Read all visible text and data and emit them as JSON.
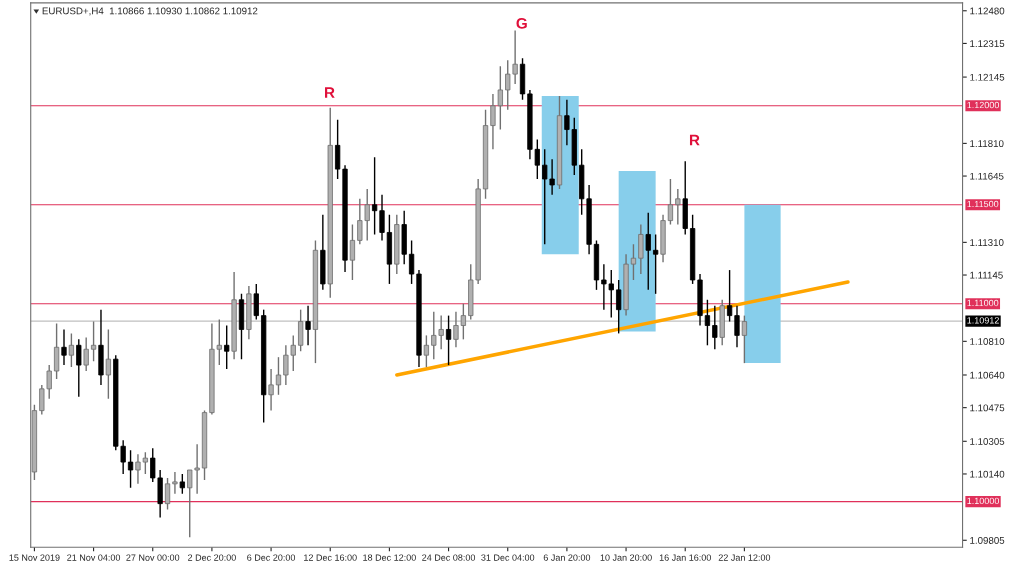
{
  "chart_data": {
    "type": "candlestick",
    "title": "EURUSD+,H4  1.10866 1.10930 1.10862 1.10912",
    "categories": [
      "15 Nov 2019",
      null,
      null,
      null,
      null,
      null,
      null,
      null,
      "21 Nov 04:00",
      null,
      null,
      null,
      null,
      null,
      null,
      null,
      "27 Nov 00:00",
      null,
      null,
      null,
      null,
      null,
      null,
      null,
      "2 Dec 20:00",
      null,
      null,
      null,
      null,
      null,
      null,
      null,
      "6 Dec 20:00",
      null,
      null,
      null,
      null,
      null,
      null,
      null,
      "12 Dec 16:00",
      null,
      null,
      null,
      null,
      null,
      null,
      null,
      "18 Dec 12:00",
      null,
      null,
      null,
      null,
      null,
      null,
      null,
      "24 Dec 08:00",
      null,
      null,
      null,
      null,
      null,
      null,
      null,
      "31 Dec 04:00",
      null,
      null,
      null,
      null,
      null,
      null,
      null,
      "6 Jan 20:00",
      null,
      null,
      null,
      null,
      null,
      null,
      null,
      "10 Jan 20:00",
      null,
      null,
      null,
      null,
      null,
      null,
      null,
      "16 Jan 16:00",
      null,
      null,
      null,
      null,
      null,
      null,
      null,
      "22 Jan 12:00",
      null,
      null,
      null,
      null,
      null,
      null,
      null,
      null,
      null,
      null,
      null,
      null,
      null,
      null,
      null,
      null,
      null,
      null,
      null,
      null,
      null,
      null,
      null,
      null,
      null,
      null,
      null,
      null,
      null
    ],
    "ohlc": [
      [
        1.1015,
        1.1049,
        1.1011,
        1.1046
      ],
      [
        1.1046,
        1.1059,
        1.1044,
        1.1057
      ],
      [
        1.1057,
        1.1069,
        1.1052,
        1.1066
      ],
      [
        1.1066,
        1.109,
        1.1062,
        1.1078
      ],
      [
        1.1078,
        1.1087,
        1.1069,
        1.1074
      ],
      [
        1.1074,
        1.1085,
        1.1068,
        1.1079
      ],
      [
        1.1079,
        1.1082,
        1.1053,
        1.1069
      ],
      [
        1.1069,
        1.1083,
        1.1066,
        1.1077
      ],
      [
        1.1077,
        1.1091,
        1.1071,
        1.1079
      ],
      [
        1.1079,
        1.1097,
        1.1059,
        1.1064
      ],
      [
        1.1064,
        1.1087,
        1.1052,
        1.1072
      ],
      [
        1.1072,
        1.1074,
        1.1026,
        1.1028
      ],
      [
        1.1028,
        1.1031,
        1.1014,
        1.102
      ],
      [
        1.102,
        1.1026,
        1.1007,
        1.1016
      ],
      [
        1.1016,
        1.1024,
        1.1009,
        1.102
      ],
      [
        1.102,
        1.1025,
        1.1014,
        1.1022
      ],
      [
        1.1022,
        1.1027,
        1.101,
        1.1012
      ],
      [
        1.1012,
        1.1016,
        1.0992,
        1.0999
      ],
      [
        1.0999,
        1.1012,
        1.0996,
        1.1009
      ],
      [
        1.1009,
        1.1015,
        1.1004,
        1.101
      ],
      [
        1.101,
        1.1014,
        1.1004,
        1.1007
      ],
      [
        1.1007,
        1.1016,
        1.0982,
        1.1016
      ],
      [
        1.1016,
        1.1029,
        1.1004,
        1.1017
      ],
      [
        1.1017,
        1.1046,
        1.1011,
        1.1045
      ],
      [
        1.1045,
        1.109,
        1.1044,
        1.1077
      ],
      [
        1.1077,
        1.1092,
        1.1069,
        1.1079
      ],
      [
        1.1079,
        1.1089,
        1.1067,
        1.1076
      ],
      [
        1.1076,
        1.1116,
        1.1072,
        1.1102
      ],
      [
        1.1102,
        1.1105,
        1.1072,
        1.1087
      ],
      [
        1.1087,
        1.1109,
        1.1082,
        1.1105
      ],
      [
        1.1105,
        1.111,
        1.1092,
        1.1094
      ],
      [
        1.1094,
        1.1097,
        1.104,
        1.1054
      ],
      [
        1.1054,
        1.1067,
        1.1046,
        1.1059
      ],
      [
        1.1059,
        1.1073,
        1.1054,
        1.1064
      ],
      [
        1.1064,
        1.1079,
        1.1059,
        1.1074
      ],
      [
        1.1074,
        1.1084,
        1.1066,
        1.1079
      ],
      [
        1.1079,
        1.1097,
        1.1076,
        1.1091
      ],
      [
        1.1091,
        1.1099,
        1.1079,
        1.1087
      ],
      [
        1.1087,
        1.1132,
        1.107,
        1.1127
      ],
      [
        1.1127,
        1.1145,
        1.1107,
        1.111
      ],
      [
        1.111,
        1.1199,
        1.1103,
        1.118
      ],
      [
        1.118,
        1.1193,
        1.1163,
        1.1168
      ],
      [
        1.1168,
        1.117,
        1.1116,
        1.1122
      ],
      [
        1.1122,
        1.114,
        1.1112,
        1.1132
      ],
      [
        1.1132,
        1.1153,
        1.113,
        1.1142
      ],
      [
        1.1142,
        1.1158,
        1.1132,
        1.115
      ],
      [
        1.115,
        1.1174,
        1.1135,
        1.1147
      ],
      [
        1.1147,
        1.1155,
        1.1132,
        1.1136
      ],
      [
        1.1136,
        1.1145,
        1.111,
        1.112
      ],
      [
        1.112,
        1.1145,
        1.1115,
        1.114
      ],
      [
        1.114,
        1.1147,
        1.112,
        1.1125
      ],
      [
        1.1125,
        1.1132,
        1.111,
        1.1115
      ],
      [
        1.1115,
        1.1117,
        1.1068,
        1.1074
      ],
      [
        1.1074,
        1.1084,
        1.1068,
        1.1079
      ],
      [
        1.1079,
        1.1096,
        1.1072,
        1.1084
      ],
      [
        1.1084,
        1.1094,
        1.1077,
        1.1087
      ],
      [
        1.1087,
        1.1094,
        1.1069,
        1.1082
      ],
      [
        1.1082,
        1.1096,
        1.1078,
        1.1089
      ],
      [
        1.1089,
        1.11,
        1.1082,
        1.1094
      ],
      [
        1.1094,
        1.112,
        1.1092,
        1.1112
      ],
      [
        1.1112,
        1.1163,
        1.111,
        1.1158
      ],
      [
        1.1158,
        1.1198,
        1.1153,
        1.119
      ],
      [
        1.119,
        1.1206,
        1.1178,
        1.12
      ],
      [
        1.12,
        1.122,
        1.1188,
        1.1208
      ],
      [
        1.1208,
        1.1223,
        1.1198,
        1.1216
      ],
      [
        1.1216,
        1.1238,
        1.1211,
        1.1221
      ],
      [
        1.1221,
        1.1224,
        1.1203,
        1.1206
      ],
      [
        1.1206,
        1.1208,
        1.1173,
        1.1178
      ],
      [
        1.1178,
        1.1183,
        1.1163,
        1.117
      ],
      [
        1.117,
        1.1178,
        1.113,
        1.1163
      ],
      [
        1.1163,
        1.1173,
        1.1155,
        1.116
      ],
      [
        1.116,
        1.1205,
        1.1158,
        1.1195
      ],
      [
        1.1195,
        1.1203,
        1.118,
        1.1188
      ],
      [
        1.1188,
        1.1194,
        1.1165,
        1.117
      ],
      [
        1.117,
        1.1178,
        1.1145,
        1.1153
      ],
      [
        1.1153,
        1.116,
        1.1125,
        1.113
      ],
      [
        1.113,
        1.1132,
        1.1107,
        1.1112
      ],
      [
        1.1112,
        1.112,
        1.1097,
        1.111
      ],
      [
        1.111,
        1.1117,
        1.1093,
        1.1107
      ],
      [
        1.1107,
        1.1112,
        1.1085,
        1.1097
      ],
      [
        1.1097,
        1.1125,
        1.1094,
        1.112
      ],
      [
        1.112,
        1.113,
        1.1112,
        1.1123
      ],
      [
        1.1123,
        1.114,
        1.1115,
        1.1135
      ],
      [
        1.1135,
        1.1146,
        1.1107,
        1.1127
      ],
      [
        1.1127,
        1.1135,
        1.1105,
        1.1125
      ],
      [
        1.1125,
        1.1145,
        1.1121,
        1.1142
      ],
      [
        1.1142,
        1.1163,
        1.114,
        1.115
      ],
      [
        1.115,
        1.1158,
        1.114,
        1.1153
      ],
      [
        1.1153,
        1.1172,
        1.1135,
        1.1138
      ],
      [
        1.1138,
        1.1145,
        1.111,
        1.1112
      ],
      [
        1.1112,
        1.1115,
        1.1089,
        1.1094
      ],
      [
        1.1094,
        1.1102,
        1.1079,
        1.1089
      ],
      [
        1.1089,
        1.1099,
        1.1077,
        1.1083
      ],
      [
        1.1083,
        1.1102,
        1.1079,
        1.1099
      ],
      [
        1.1099,
        1.1117,
        1.1091,
        1.1094
      ],
      [
        1.1094,
        1.1099,
        1.1078,
        1.1084
      ],
      [
        1.1084,
        1.1094,
        1.107,
        1.1091
      ],
      null,
      null,
      null,
      null,
      null,
      null,
      null,
      null,
      null,
      null,
      null,
      null,
      null,
      null,
      null,
      null,
      null,
      null,
      null,
      null,
      null,
      null,
      null,
      null,
      null,
      null,
      null,
      null,
      null
    ],
    "series": [
      {
        "type": "line",
        "values": [
          null,
          null,
          null,
          null,
          null,
          null,
          null,
          null,
          null,
          null,
          null,
          null,
          null,
          null,
          null,
          null,
          null,
          null,
          null,
          null,
          null,
          null,
          null,
          null,
          null,
          null,
          null,
          null,
          null,
          null,
          null,
          null,
          null,
          null,
          null,
          null,
          null,
          null,
          null,
          null,
          null,
          null,
          null,
          null,
          null,
          null,
          null,
          null,
          null,
          1.1064,
          null,
          null,
          null,
          null,
          null,
          null,
          null,
          null,
          null,
          null,
          null,
          null,
          null,
          null,
          null,
          null,
          null,
          null,
          null,
          null,
          null,
          null,
          null,
          null,
          null,
          null,
          null,
          null,
          null,
          null,
          null,
          null,
          null,
          null,
          null,
          null,
          null,
          null,
          null,
          null,
          null,
          null,
          null,
          null,
          null,
          null,
          null,
          null,
          null,
          null,
          null,
          null,
          null,
          null,
          null,
          null,
          null,
          null,
          null,
          null,
          1.1111,
          null,
          null,
          null,
          null,
          null,
          null,
          null,
          null,
          null,
          null,
          null,
          null,
          null,
          null,
          null
        ],
        "color": "#ffa500"
      }
    ],
    "ylim": [
      1.0977,
      1.1252
    ],
    "yticks": [
      {
        "value": 1.1248,
        "label": "1.12480"
      },
      {
        "value": 1.12315,
        "label": "1.12315"
      },
      {
        "value": 1.12145,
        "label": "1.12145"
      },
      {
        "value": 1.1181,
        "label": "1.11810"
      },
      {
        "value": 1.11645,
        "label": "1.11645"
      },
      {
        "value": 1.1131,
        "label": "1.11310"
      },
      {
        "value": 1.11145,
        "label": "1.11145"
      },
      {
        "value": 1.1081,
        "label": "1.10810"
      },
      {
        "value": 1.1064,
        "label": "1.10640"
      },
      {
        "value": 1.10475,
        "label": "1.10475"
      },
      {
        "value": 1.10305,
        "label": "1.10305"
      },
      {
        "value": 1.1014,
        "label": "1.10140"
      },
      {
        "value": 1.09805,
        "label": "1.09805"
      }
    ],
    "ref_lines": [
      {
        "axis": "y",
        "value": 1.12,
        "label": "1.12000",
        "color": "#e0305a"
      },
      {
        "axis": "y",
        "value": 1.115,
        "label": "1.11500",
        "color": "#e0305a"
      },
      {
        "axis": "y",
        "value": 1.11,
        "label": "1.11000",
        "color": "#e0305a"
      },
      {
        "axis": "y",
        "value": 1.1,
        "label": "1.10000",
        "color": "#e0305a"
      },
      {
        "axis": "y",
        "value": 1.10912,
        "label": "1.10912",
        "color": "#c0c0c0"
      }
    ],
    "annotations": [
      "R",
      "G",
      "R"
    ],
    "grid": false,
    "legend": false
  }
}
